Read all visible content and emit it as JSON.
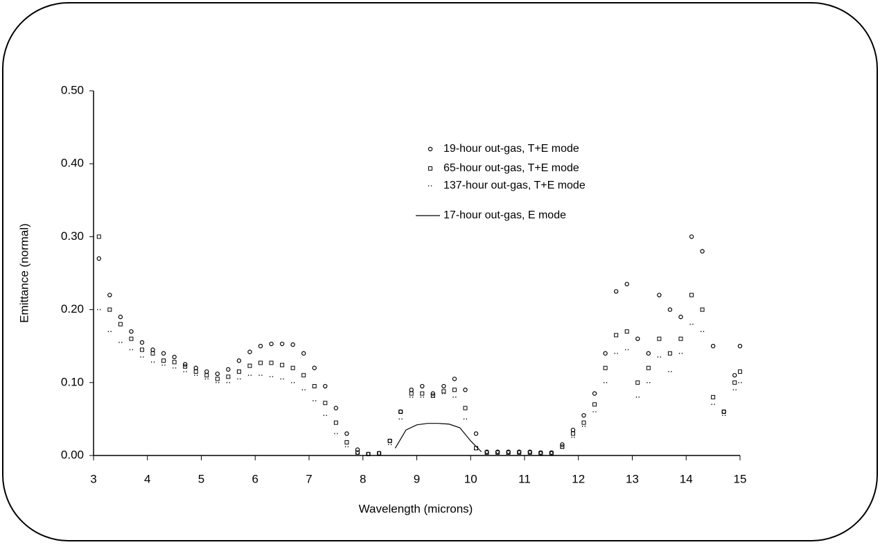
{
  "chart_data": {
    "type": "scatter",
    "xlabel": "Wavelength (microns)",
    "ylabel": "Emittance (normal)",
    "xlim": [
      3,
      15
    ],
    "ylim": [
      0,
      0.5
    ],
    "xticks": [
      3,
      4,
      5,
      6,
      7,
      8,
      9,
      10,
      11,
      12,
      13,
      14,
      15
    ],
    "yticks": [
      {
        "value": 0,
        "label": "0.00"
      },
      {
        "value": 0.1,
        "label": "0.10"
      },
      {
        "value": 0.2,
        "label": "0.20"
      },
      {
        "value": 0.3,
        "label": "0.30"
      },
      {
        "value": 0.4,
        "label": "0.40"
      },
      {
        "value": 0.5,
        "label": "0.50"
      }
    ],
    "series": [
      {
        "name": "19-hour out-gas, T+E mode",
        "color": "#000000",
        "marker": "circle",
        "x": [
          3.1,
          3.3,
          3.5,
          3.7,
          3.9,
          4.1,
          4.3,
          4.5,
          4.7,
          4.9,
          5.1,
          5.3,
          5.5,
          5.7,
          5.9,
          6.1,
          6.3,
          6.5,
          6.7,
          6.9,
          7.1,
          7.3,
          7.5,
          7.7,
          7.9,
          8.1,
          8.3,
          8.5,
          8.7,
          8.9,
          9.1,
          9.3,
          9.5,
          9.7,
          9.9,
          10.1,
          10.3,
          10.5,
          10.7,
          10.9,
          11.1,
          11.3,
          11.5,
          11.7,
          11.9,
          12.1,
          12.3,
          12.5,
          12.7,
          12.9,
          13.1,
          13.3,
          13.5,
          13.7,
          13.9,
          14.1,
          14.3,
          14.5,
          14.7,
          14.9,
          15.0
        ],
        "values": [
          0.27,
          0.22,
          0.19,
          0.17,
          0.155,
          0.145,
          0.14,
          0.135,
          0.125,
          0.12,
          0.115,
          0.112,
          0.118,
          0.13,
          0.142,
          0.15,
          0.153,
          0.153,
          0.152,
          0.14,
          0.12,
          0.095,
          0.065,
          0.03,
          0.008,
          0.002,
          0.003,
          0.02,
          0.06,
          0.09,
          0.095,
          0.085,
          0.095,
          0.105,
          0.09,
          0.03,
          0.005,
          0.005,
          0.005,
          0.005,
          0.005,
          0.004,
          0.004,
          0.015,
          0.035,
          0.055,
          0.085,
          0.14,
          0.225,
          0.235,
          0.16,
          0.14,
          0.22,
          0.2,
          0.19,
          0.3,
          0.28,
          0.15,
          0.06,
          0.11,
          0.15
        ]
      },
      {
        "name": "65-hour out-gas, T+E mode",
        "color": "#000000",
        "marker": "square",
        "x": [
          3.1,
          3.3,
          3.5,
          3.7,
          3.9,
          4.1,
          4.3,
          4.5,
          4.7,
          4.9,
          5.1,
          5.3,
          5.5,
          5.7,
          5.9,
          6.1,
          6.3,
          6.5,
          6.7,
          6.9,
          7.1,
          7.3,
          7.5,
          7.7,
          7.9,
          8.1,
          8.3,
          8.5,
          8.7,
          8.9,
          9.1,
          9.3,
          9.5,
          9.7,
          9.9,
          10.1,
          10.3,
          10.5,
          10.7,
          10.9,
          11.1,
          11.3,
          11.5,
          11.7,
          11.9,
          12.1,
          12.3,
          12.5,
          12.7,
          12.9,
          13.1,
          13.3,
          13.5,
          13.7,
          13.9,
          14.1,
          14.3,
          14.5,
          14.7,
          14.9,
          15.0
        ],
        "values": [
          0.3,
          0.2,
          0.18,
          0.16,
          0.145,
          0.14,
          0.13,
          0.128,
          0.122,
          0.115,
          0.11,
          0.105,
          0.108,
          0.115,
          0.123,
          0.127,
          0.127,
          0.124,
          0.12,
          0.11,
          0.095,
          0.072,
          0.045,
          0.018,
          0.004,
          0.002,
          0.003,
          0.02,
          0.06,
          0.085,
          0.085,
          0.082,
          0.088,
          0.09,
          0.065,
          0.01,
          0.004,
          0.004,
          0.004,
          0.004,
          0.004,
          0.003,
          0.003,
          0.012,
          0.03,
          0.045,
          0.07,
          0.12,
          0.165,
          0.17,
          0.1,
          0.12,
          0.16,
          0.14,
          0.16,
          0.22,
          0.2,
          0.08,
          0.06,
          0.1,
          0.115
        ]
      },
      {
        "name": "137-hour out-gas, T+E mode",
        "color": "#000000",
        "marker": "dots",
        "x": [
          3.1,
          3.3,
          3.5,
          3.7,
          3.9,
          4.1,
          4.3,
          4.5,
          4.7,
          4.9,
          5.1,
          5.3,
          5.5,
          5.7,
          5.9,
          6.1,
          6.3,
          6.5,
          6.7,
          6.9,
          7.1,
          7.3,
          7.5,
          7.7,
          7.9,
          8.1,
          8.3,
          8.5,
          8.7,
          8.9,
          9.1,
          9.3,
          9.5,
          9.7,
          9.9,
          10.1,
          10.3,
          10.5,
          10.7,
          10.9,
          11.1,
          11.3,
          11.5,
          11.7,
          11.9,
          12.1,
          12.3,
          12.5,
          12.7,
          12.9,
          13.1,
          13.3,
          13.5,
          13.7,
          13.9,
          14.1,
          14.3,
          14.5,
          14.7,
          14.9,
          15.0
        ],
        "values": [
          0.2,
          0.17,
          0.155,
          0.145,
          0.135,
          0.128,
          0.124,
          0.12,
          0.115,
          0.11,
          0.105,
          0.1,
          0.1,
          0.105,
          0.11,
          0.11,
          0.108,
          0.105,
          0.1,
          0.09,
          0.075,
          0.055,
          0.03,
          0.012,
          0.003,
          0.002,
          0.003,
          0.015,
          0.05,
          0.08,
          0.08,
          0.08,
          0.085,
          0.08,
          0.05,
          0.008,
          0.004,
          0.004,
          0.004,
          0.004,
          0.004,
          0.004,
          0.004,
          0.01,
          0.025,
          0.04,
          0.06,
          0.1,
          0.14,
          0.145,
          0.08,
          0.1,
          0.135,
          0.115,
          0.14,
          0.18,
          0.17,
          0.07,
          0.055,
          0.09,
          0.1
        ]
      },
      {
        "name": "17-hour out-gas, E mode",
        "color": "#000000",
        "marker": "line",
        "x": [
          8.6,
          8.8,
          9.0,
          9.2,
          9.4,
          9.6,
          9.8,
          10.0,
          10.2
        ],
        "values": [
          0.01,
          0.035,
          0.042,
          0.044,
          0.044,
          0.043,
          0.038,
          0.02,
          0.005
        ]
      }
    ]
  }
}
